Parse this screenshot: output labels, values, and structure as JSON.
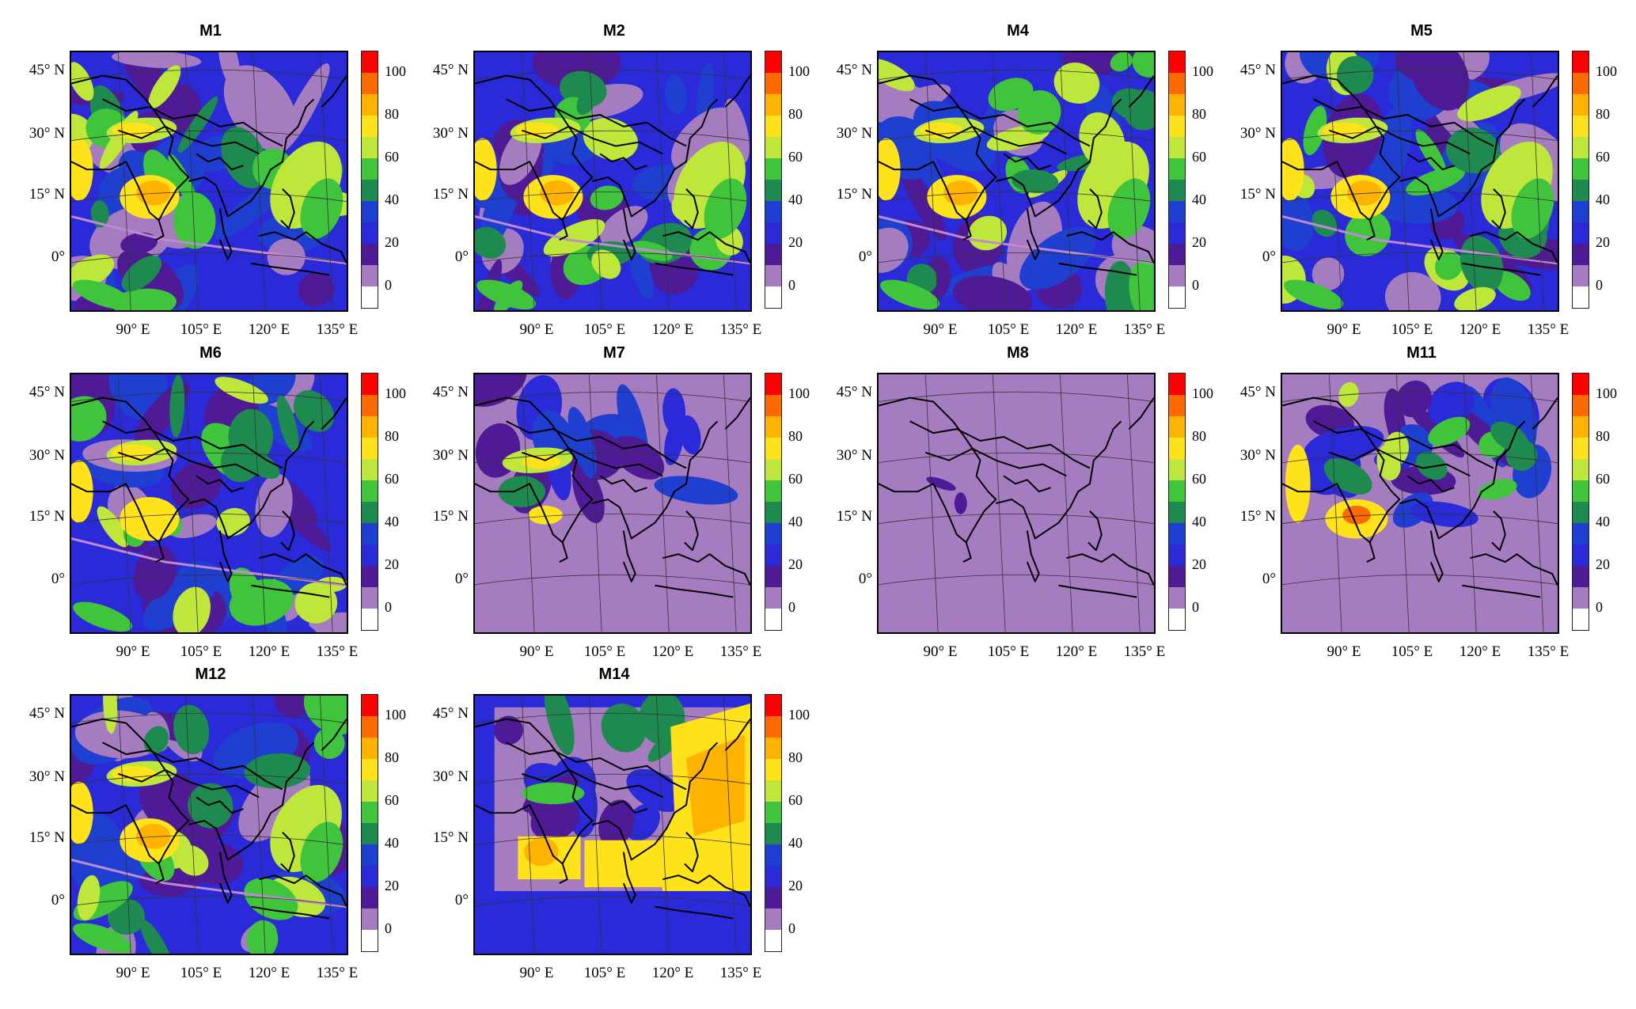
{
  "figure": {
    "lat_labels": [
      "45° N",
      "30° N",
      "15° N",
      "0°"
    ],
    "lon_labels": [
      "90° E",
      "105° E",
      "120° E",
      "135° E"
    ],
    "colorbar": {
      "tick_labels": [
        "0",
        "20",
        "40",
        "60",
        "80",
        "100"
      ],
      "colors": [
        "#ffffff",
        "#a57cc0",
        "#4f1a96",
        "#2a2ad8",
        "#1f3fd0",
        "#1e8a50",
        "#3fc43c",
        "#bfe63a",
        "#ffe31a",
        "#ffb300",
        "#ff6a00",
        "#ff0000"
      ]
    },
    "panels": [
      {
        "title": "M1",
        "pattern": "dense"
      },
      {
        "title": "M2",
        "pattern": "dense"
      },
      {
        "title": "M4",
        "pattern": "dense"
      },
      {
        "title": "M5",
        "pattern": "dense"
      },
      {
        "title": "M6",
        "pattern": "medium"
      },
      {
        "title": "M7",
        "pattern": "land-only"
      },
      {
        "title": "M8",
        "pattern": "near-zero"
      },
      {
        "title": "M11",
        "pattern": "medium-land"
      },
      {
        "title": "M12",
        "pattern": "dense"
      },
      {
        "title": "M14",
        "pattern": "boxed"
      }
    ]
  }
}
